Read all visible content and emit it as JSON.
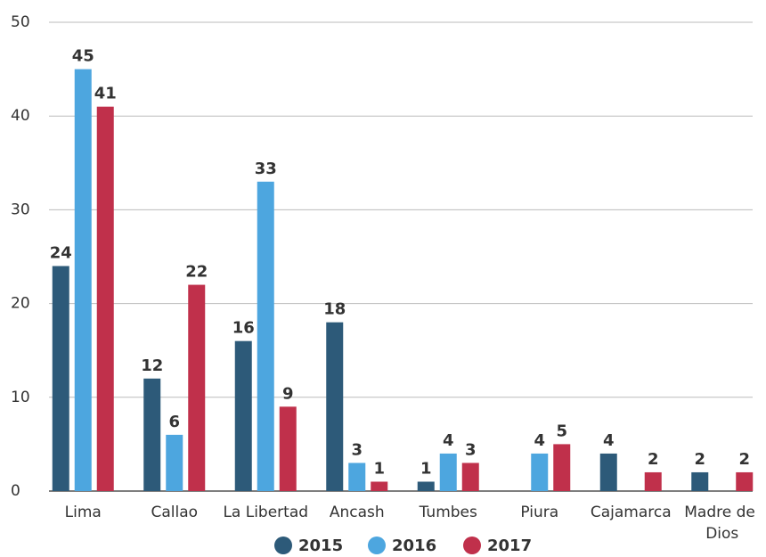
{
  "chart_data": {
    "type": "bar",
    "categories": [
      "Lima",
      "Callao",
      "La Libertad",
      "Ancash",
      "Tumbes",
      "Piura",
      "Cajamarca",
      "Madre de Dios"
    ],
    "series": [
      {
        "name": "2015",
        "color": "#2d5a79",
        "values": [
          24,
          12,
          16,
          18,
          1,
          null,
          4,
          2
        ]
      },
      {
        "name": "2016",
        "color": "#4da6df",
        "values": [
          45,
          6,
          33,
          3,
          4,
          4,
          null,
          null
        ]
      },
      {
        "name": "2017",
        "color": "#c0304b",
        "values": [
          41,
          22,
          9,
          1,
          3,
          5,
          2,
          2
        ]
      }
    ],
    "ylim": [
      0,
      50
    ],
    "yticks": [
      0,
      10,
      20,
      30,
      40,
      50
    ],
    "grid": true,
    "legend": "bottom"
  }
}
